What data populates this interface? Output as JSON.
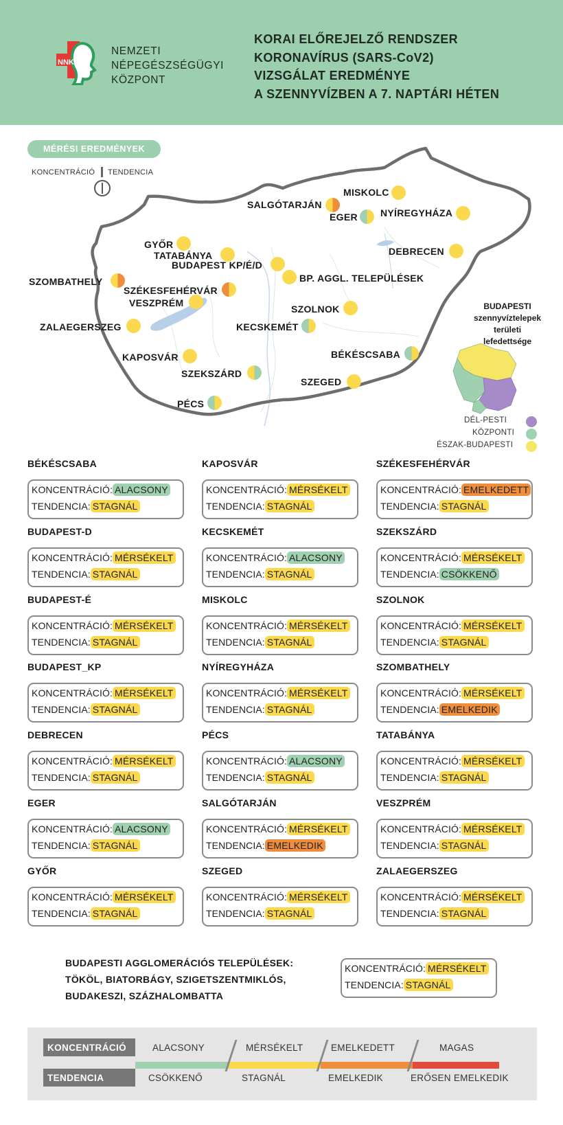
{
  "org": {
    "logo_text": "NNK",
    "lines": [
      "NEMZETI",
      "NÉPEGÉSZSÉGÜGYI",
      "KÖZPONT"
    ]
  },
  "title_lines": [
    "KORAI ELŐREJELZŐ RENDSZER",
    "KORONAVÍRUS (SARS-CoV2)",
    "VIZSGÁLAT EREDMÉNYE",
    "A SZENNYVÍZBEN A 7. NAPTÁRI HÉTEN"
  ],
  "map": {
    "section_label": "MÉRÉSI EREDMÉNYEK",
    "legend_concentration": "KONCENTRÁCIÓ",
    "legend_trend": "TENDENCIA",
    "cities": [
      {
        "name": "MISKOLC",
        "conc": "yellow",
        "trend": "yellow"
      },
      {
        "name": "SALGÓTARJÁN",
        "conc": "yellow",
        "trend": "orange"
      },
      {
        "name": "EGER",
        "conc": "green",
        "trend": "yellow"
      },
      {
        "name": "NYÍREGYHÁZA",
        "conc": "yellow",
        "trend": "yellow"
      },
      {
        "name": "DEBRECEN",
        "conc": "yellow",
        "trend": "yellow"
      },
      {
        "name": "GYŐR",
        "conc": "yellow",
        "trend": "yellow"
      },
      {
        "name": "TATABÁNYA",
        "conc": "yellow",
        "trend": "yellow"
      },
      {
        "name": "BUDAPEST KP/É/D",
        "conc": "yellow",
        "trend": "yellow"
      },
      {
        "name": "BP. AGGL. TELEPÜLÉSEK",
        "conc": "yellow",
        "trend": "yellow"
      },
      {
        "name": "SZOMBATHELY",
        "conc": "yellow",
        "trend": "orange"
      },
      {
        "name": "SZÉKESFEHÉRVÁR",
        "conc": "orange",
        "trend": "yellow"
      },
      {
        "name": "VESZPRÉM",
        "conc": "yellow",
        "trend": "yellow"
      },
      {
        "name": "SZOLNOK",
        "conc": "yellow",
        "trend": "yellow"
      },
      {
        "name": "ZALAEGERSZEG",
        "conc": "yellow",
        "trend": "yellow"
      },
      {
        "name": "KECSKEMÉT",
        "conc": "green",
        "trend": "yellow"
      },
      {
        "name": "BÉKÉSCSABA",
        "conc": "green",
        "trend": "yellow"
      },
      {
        "name": "KAPOSVÁR",
        "conc": "yellow",
        "trend": "yellow"
      },
      {
        "name": "SZEKSZÁRD",
        "conc": "yellow",
        "trend": "green"
      },
      {
        "name": "SZEGED",
        "conc": "yellow",
        "trend": "yellow"
      },
      {
        "name": "PÉCS",
        "conc": "green",
        "trend": "yellow"
      }
    ],
    "budapest_legend": {
      "title_lines": [
        "BUDAPESTI",
        "szennyvíztelepek",
        "területi",
        "lefedettsége"
      ],
      "regions": [
        "DÉL-PESTI",
        "KÖZPONTI",
        "ÉSZAK-BUDAPESTI"
      ],
      "region_colors": [
        "#a78bc8",
        "#9fd0af",
        "#f5e663"
      ]
    }
  },
  "row_labels": {
    "concentration": "KONCENTRÁCIÓ:",
    "trend": "TENDENCIA:"
  },
  "cards": [
    {
      "name": "BÉKÉSCSABA",
      "conc": "ALACSONY",
      "conc_color": "g",
      "trend": "STAGNÁL",
      "trend_color": "y"
    },
    {
      "name": "BUDAPEST-D",
      "conc": "MÉRSÉKELT",
      "conc_color": "y",
      "trend": "STAGNÁL",
      "trend_color": "y"
    },
    {
      "name": "BUDAPEST-É",
      "conc": "MÉRSÉKELT",
      "conc_color": "y",
      "trend": "STAGNÁL",
      "trend_color": "y"
    },
    {
      "name": "BUDAPEST_KP",
      "conc": "MÉRSÉKELT",
      "conc_color": "y",
      "trend": "STAGNÁL",
      "trend_color": "y"
    },
    {
      "name": "DEBRECEN",
      "conc": "MÉRSÉKELT",
      "conc_color": "y",
      "trend": "STAGNÁL",
      "trend_color": "y"
    },
    {
      "name": "EGER",
      "conc": "ALACSONY",
      "conc_color": "g",
      "trend": "STAGNÁL",
      "trend_color": "y"
    },
    {
      "name": "GYŐR",
      "conc": "MÉRSÉKELT",
      "conc_color": "y",
      "trend": "STAGNÁL",
      "trend_color": "y"
    },
    {
      "name": "KAPOSVÁR",
      "conc": "MÉRSÉKELT",
      "conc_color": "y",
      "trend": "STAGNÁL",
      "trend_color": "y"
    },
    {
      "name": "KECSKEMÉT",
      "conc": "ALACSONY",
      "conc_color": "g",
      "trend": "STAGNÁL",
      "trend_color": "y"
    },
    {
      "name": "MISKOLC",
      "conc": "MÉRSÉKELT",
      "conc_color": "y",
      "trend": "STAGNÁL",
      "trend_color": "y"
    },
    {
      "name": "NYÍREGYHÁZA",
      "conc": "MÉRSÉKELT",
      "conc_color": "y",
      "trend": "STAGNÁL",
      "trend_color": "y"
    },
    {
      "name": "PÉCS",
      "conc": "ALACSONY",
      "conc_color": "g",
      "trend": "STAGNÁL",
      "trend_color": "y"
    },
    {
      "name": "SALGÓTARJÁN",
      "conc": "MÉRSÉKELT",
      "conc_color": "y",
      "trend": "EMELKEDIK",
      "trend_color": "o"
    },
    {
      "name": "SZEGED",
      "conc": "MÉRSÉKELT",
      "conc_color": "y",
      "trend": "STAGNÁL",
      "trend_color": "y"
    },
    {
      "name": "SZÉKESFEHÉRVÁR",
      "conc": "EMELKEDETT",
      "conc_color": "o",
      "trend": "STAGNÁL",
      "trend_color": "y"
    },
    {
      "name": "SZEKSZÁRD",
      "conc": "MÉRSÉKELT",
      "conc_color": "y",
      "trend": "CSÖKKENŐ",
      "trend_color": "g"
    },
    {
      "name": "SZOLNOK",
      "conc": "MÉRSÉKELT",
      "conc_color": "y",
      "trend": "STAGNÁL",
      "trend_color": "y"
    },
    {
      "name": "SZOMBATHELY",
      "conc": "MÉRSÉKELT",
      "conc_color": "y",
      "trend": "EMELKEDIK",
      "trend_color": "o"
    },
    {
      "name": "TATABÁNYA",
      "conc": "MÉRSÉKELT",
      "conc_color": "y",
      "trend": "STAGNÁL",
      "trend_color": "y"
    },
    {
      "name": "VESZPRÉM",
      "conc": "MÉRSÉKELT",
      "conc_color": "y",
      "trend": "STAGNÁL",
      "trend_color": "y"
    },
    {
      "name": "ZALAEGERSZEG",
      "conc": "MÉRSÉKELT",
      "conc_color": "y",
      "trend": "STAGNÁL",
      "trend_color": "y"
    }
  ],
  "agglomeration": {
    "lines": [
      "BUDAPESTI AGGLOMERÁCIÓS TELEPÜLÉSEK:",
      "TÖKÖL, BIATORBÁGY, SZIGETSZENTMIKLÓS,",
      "BUDAKESZI, SZÁZHALOMBATTA"
    ],
    "conc": "MÉRSÉKELT",
    "conc_color": "y",
    "trend": "STAGNÁL",
    "trend_color": "y"
  },
  "scale_legend": {
    "concentration_label": "KONCENTRÁCIÓ",
    "trend_label": "TENDENCIA",
    "concentration_levels": [
      "ALACSONY",
      "MÉRSÉKELT",
      "EMELKEDETT",
      "MAGAS"
    ],
    "trend_levels": [
      "CSÖKKENŐ",
      "STAGNÁL",
      "EMELKEDIK",
      "ERŐSEN EMELKEDIK"
    ],
    "level_colors": [
      "#9fd0af",
      "#fbd94e",
      "#ee8d3c",
      "#e14b3b"
    ]
  },
  "colors": {
    "header_bg": "#9ccfad",
    "green": "#9fd0af",
    "yellow": "#fbd94e",
    "orange": "#ee8d3c",
    "red": "#e14b3b"
  }
}
